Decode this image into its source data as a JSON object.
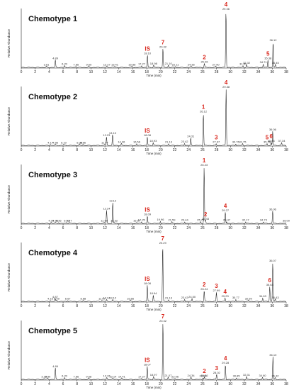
{
  "chart_data": {
    "type": "line",
    "xaxis": {
      "label": "Time (min)",
      "range": [
        0,
        38
      ],
      "ticks": [
        0,
        2,
        4,
        6,
        8,
        10,
        12,
        14,
        16,
        18,
        20,
        22,
        24,
        26,
        28,
        30,
        32,
        34,
        36,
        38
      ]
    },
    "yaxis": {
      "label": "Relative Abundance"
    },
    "annotation_color": "#d9261c",
    "panels": [
      {
        "title": "Chemotype 1",
        "peaks": [
          {
            "rt": 3.61,
            "h": 2
          },
          {
            "rt": 4.89,
            "h": 13
          },
          {
            "rt": 6.2,
            "h": 3
          },
          {
            "rt": 7.85,
            "h": 2
          },
          {
            "rt": 9.69,
            "h": 2
          },
          {
            "rt": 12.27,
            "h": 2
          },
          {
            "rt": 13.41,
            "h": 2
          },
          {
            "rt": 15.88,
            "h": 2
          },
          {
            "rt": 17.27,
            "h": 3
          },
          {
            "rt": 18.1,
            "h": 22,
            "mark": "IS"
          },
          {
            "rt": 18.98,
            "h": 4
          },
          {
            "rt": 20.32,
            "h": 33,
            "mark": "7"
          },
          {
            "rt": 21.1,
            "h": 4
          },
          {
            "rt": 22.11,
            "h": 2
          },
          {
            "rt": 24.36,
            "h": 2
          },
          {
            "rt": 26.26,
            "h": 7,
            "mark": "2"
          },
          {
            "rt": 27.9,
            "h": 2
          },
          {
            "rt": 29.36,
            "h": 100,
            "mark": "4"
          },
          {
            "rt": 31.81,
            "h": 3
          },
          {
            "rt": 32.32,
            "h": 5
          },
          {
            "rt": 34.71,
            "h": 6
          },
          {
            "rt": 35.38,
            "h": 13,
            "mark": "5"
          },
          {
            "rt": 36.12,
            "h": 45
          },
          {
            "rt": 36.45,
            "h": 5
          }
        ]
      },
      {
        "title": "Chemotype 2",
        "peaks": [
          {
            "rt": 4.17,
            "h": 2
          },
          {
            "rt": 4.88,
            "h": 2
          },
          {
            "rt": 6.1,
            "h": 2
          },
          {
            "rt": 8.35,
            "h": 2
          },
          {
            "rt": 8.86,
            "h": 2
          },
          {
            "rt": 11.97,
            "h": 2
          },
          {
            "rt": 12.23,
            "h": 15
          },
          {
            "rt": 13.1,
            "h": 19
          },
          {
            "rt": 14.36,
            "h": 3
          },
          {
            "rt": 16.56,
            "h": 3
          },
          {
            "rt": 18.08,
            "h": 15,
            "mark": "IS"
          },
          {
            "rt": 18.93,
            "h": 5
          },
          {
            "rt": 21.13,
            "h": 3
          },
          {
            "rt": 23.42,
            "h": 4
          },
          {
            "rt": 24.31,
            "h": 13
          },
          {
            "rt": 26.12,
            "h": 57,
            "mark": "1"
          },
          {
            "rt": 27.97,
            "h": 3,
            "mark": "3"
          },
          {
            "rt": 29.38,
            "h": 100,
            "mark": "4"
          },
          {
            "rt": 30.76,
            "h": 3
          },
          {
            "rt": 31.75,
            "h": 3
          },
          {
            "rt": 35.26,
            "h": 3,
            "mark": "5"
          },
          {
            "rt": 35.84,
            "h": 5,
            "mark": "6"
          },
          {
            "rt": 36.06,
            "h": 25
          },
          {
            "rt": 37.34,
            "h": 5
          }
        ]
      },
      {
        "title": "Chemotype 3",
        "peaks": [
          {
            "rt": 4.29,
            "h": 2
          },
          {
            "rt": 4.88,
            "h": 2
          },
          {
            "rt": 5.36,
            "h": 2
          },
          {
            "rt": 6.52,
            "h": 2
          },
          {
            "rt": 6.87,
            "h": 2
          },
          {
            "rt": 11.9,
            "h": 2
          },
          {
            "rt": 12.24,
            "h": 23
          },
          {
            "rt": 13.12,
            "h": 37
          },
          {
            "rt": 13.32,
            "h": 2
          },
          {
            "rt": 16.57,
            "h": 2
          },
          {
            "rt": 17.25,
            "h": 3
          },
          {
            "rt": 18.09,
            "h": 13,
            "mark": "IS"
          },
          {
            "rt": 19.96,
            "h": 4
          },
          {
            "rt": 21.59,
            "h": 3
          },
          {
            "rt": 23.44,
            "h": 3
          },
          {
            "rt": 25.73,
            "h": 3
          },
          {
            "rt": 26.23,
            "h": 100,
            "mark": "1"
          },
          {
            "rt": 26.43,
            "h": 5,
            "mark": "2"
          },
          {
            "rt": 29.27,
            "h": 20,
            "mark": "4"
          },
          {
            "rt": 29.47,
            "h": 3
          },
          {
            "rt": 32.17,
            "h": 3
          },
          {
            "rt": 34.73,
            "h": 3
          },
          {
            "rt": 36.06,
            "h": 22
          },
          {
            "rt": 38.0,
            "h": 2
          }
        ]
      },
      {
        "title": "Chemotype 4",
        "peaks": [
          {
            "rt": 4.16,
            "h": 2
          },
          {
            "rt": 4.87,
            "h": 5
          },
          {
            "rt": 5.09,
            "h": 2
          },
          {
            "rt": 6.67,
            "h": 2
          },
          {
            "rt": 8.88,
            "h": 2
          },
          {
            "rt": 11.57,
            "h": 2
          },
          {
            "rt": 12.24,
            "h": 3
          },
          {
            "rt": 13.12,
            "h": 3
          },
          {
            "rt": 15.66,
            "h": 2
          },
          {
            "rt": 18.08,
            "h": 29,
            "mark": "IS"
          },
          {
            "rt": 18.94,
            "h": 11
          },
          {
            "rt": 20.29,
            "h": 100,
            "mark": "7"
          },
          {
            "rt": 21.13,
            "h": 3
          },
          {
            "rt": 23.43,
            "h": 4
          },
          {
            "rt": 24.5,
            "h": 5
          },
          {
            "rt": 26.24,
            "h": 19,
            "mark": "2"
          },
          {
            "rt": 27.99,
            "h": 16,
            "mark": "3"
          },
          {
            "rt": 29.23,
            "h": 6,
            "mark": "4"
          },
          {
            "rt": 30.77,
            "h": 4
          },
          {
            "rt": 32.59,
            "h": 2
          },
          {
            "rt": 34.63,
            "h": 6
          },
          {
            "rt": 35.64,
            "h": 26,
            "mark": "6"
          },
          {
            "rt": 36.07,
            "h": 69
          },
          {
            "rt": 36.43,
            "h": 4
          }
        ]
      },
      {
        "title": "Chemotype 5",
        "peaks": [
          {
            "rt": 3.28,
            "h": 2
          },
          {
            "rt": 3.8,
            "h": 2
          },
          {
            "rt": 4.89,
            "h": 20
          },
          {
            "rt": 6.2,
            "h": 3
          },
          {
            "rt": 7.86,
            "h": 2
          },
          {
            "rt": 9.68,
            "h": 2
          },
          {
            "rt": 12.26,
            "h": 3
          },
          {
            "rt": 13.14,
            "h": 2
          },
          {
            "rt": 14.41,
            "h": 2
          },
          {
            "rt": 17.27,
            "h": 2
          },
          {
            "rt": 18.07,
            "h": 23,
            "mark": "IS"
          },
          {
            "rt": 18.97,
            "h": 5
          },
          {
            "rt": 20.32,
            "h": 100,
            "mark": "7"
          },
          {
            "rt": 21.07,
            "h": 4
          },
          {
            "rt": 22.06,
            "h": 2
          },
          {
            "rt": 24.34,
            "h": 4
          },
          {
            "rt": 26.06,
            "h": 3
          },
          {
            "rt": 26.26,
            "h": 4,
            "mark": "2"
          },
          {
            "rt": 28.02,
            "h": 9,
            "mark": "3"
          },
          {
            "rt": 29.28,
            "h": 26,
            "mark": "4"
          },
          {
            "rt": 30.85,
            "h": 3
          },
          {
            "rt": 32.31,
            "h": 5
          },
          {
            "rt": 34.6,
            "h": 4
          },
          {
            "rt": 36.1,
            "h": 40
          },
          {
            "rt": 36.42,
            "h": 3
          }
        ]
      }
    ]
  }
}
